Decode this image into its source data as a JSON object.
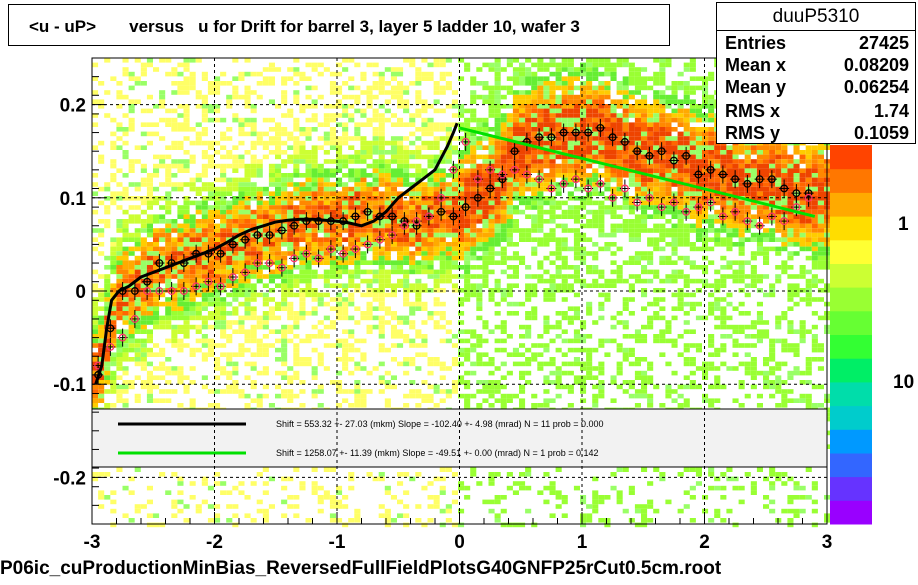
{
  "title": "<u - uP>       versus   u for Drift for barrel 3, layer 5 ladder 10, wafer 3",
  "footer": "P06ic_cuProductionMinBias_ReversedFullFieldPlotsG40GNFP25rCut0.5cm.root",
  "stats": {
    "name": "duuP5310",
    "rows": [
      {
        "key": "Entries",
        "value": "27425"
      },
      {
        "key": "Mean x",
        "value": "0.08209"
      },
      {
        "key": "Mean y",
        "value": "0.06254"
      },
      {
        "key": "RMS x",
        "value": "1.74"
      },
      {
        "key": "RMS y",
        "value": "0.1059"
      }
    ]
  },
  "legend": [
    {
      "color": "#000000",
      "text": "Shift =   553.32 +- 27.03 (mkm) Slope =  -102.40 +- 4.98 (mrad)  N = 11 prob = 0.000"
    },
    {
      "color": "#00e000",
      "text": "Shift =  1258.07 +- 11.39 (mkm) Slope =   -49.51 +- 0.00 (mrad)  N = 1 prob = 0.142"
    }
  ],
  "colors": {
    "black_fit": "#000000",
    "green_fit": "#00e000",
    "mean_markers": "#000000",
    "alt_markers": "#ff3366"
  },
  "chart_data": {
    "type": "heatmap",
    "title": "<u - uP>       versus   u for Drift for barrel 3, layer 5 ladder 10, wafer 3",
    "xlabel": "",
    "ylabel": "",
    "xlim": [
      -3,
      3
    ],
    "ylim": [
      -0.25,
      0.25
    ],
    "x_ticks": [
      -3,
      -2,
      -1,
      0,
      1,
      2,
      3
    ],
    "y_ticks": [
      -0.2,
      -0.1,
      0,
      0.1,
      0.2
    ],
    "x_tick_labels": [
      "-3",
      "-2",
      "-1",
      "0",
      "1",
      "2",
      "3"
    ],
    "y_tick_labels": [
      "-0.2",
      "-0.1",
      "0",
      "0.1",
      "0.2"
    ],
    "z_tick_labels": [
      "1",
      "10"
    ],
    "grid": true,
    "legend_position": "bottom-inside",
    "series": [
      {
        "marker": "open-circle-black",
        "x": [
          -2.95,
          -2.85,
          -2.75,
          -2.65,
          -2.55,
          -2.45,
          -2.35,
          -2.25,
          -2.15,
          -2.05,
          -1.95,
          -1.85,
          -1.75,
          -1.65,
          -1.55,
          -1.45,
          -1.35,
          -1.25,
          -1.15,
          -1.05,
          -0.95,
          -0.85,
          -0.75,
          -0.65,
          -0.55,
          -0.45,
          -0.35,
          -0.25,
          -0.15,
          -0.05,
          0.05,
          0.15,
          0.25,
          0.35,
          0.45,
          0.55,
          0.65,
          0.75,
          0.85,
          0.95,
          1.05,
          1.15,
          1.25,
          1.35,
          1.45,
          1.55,
          1.65,
          1.75,
          1.85,
          1.95,
          2.05,
          2.15,
          2.25,
          2.35,
          2.45,
          2.55,
          2.65,
          2.75,
          2.85
        ],
        "y": [
          -0.09,
          -0.04,
          0.0,
          0.0,
          0.01,
          0.03,
          0.03,
          0.03,
          0.04,
          0.04,
          0.04,
          0.05,
          0.055,
          0.06,
          0.06,
          0.065,
          0.07,
          0.075,
          0.075,
          0.075,
          0.075,
          0.08,
          0.085,
          0.08,
          0.08,
          0.075,
          0.07,
          0.08,
          0.085,
          0.08,
          0.09,
          0.1,
          0.11,
          0.12,
          0.15,
          0.16,
          0.165,
          0.165,
          0.17,
          0.17,
          0.17,
          0.175,
          0.165,
          0.16,
          0.15,
          0.145,
          0.15,
          0.14,
          0.145,
          0.125,
          0.13,
          0.125,
          0.12,
          0.115,
          0.12,
          0.12,
          0.11,
          0.105,
          0.105
        ]
      },
      {
        "marker": "open-circle-pink",
        "x": [
          -2.95,
          -2.85,
          -2.75,
          -2.65,
          -2.55,
          -2.45,
          -2.35,
          -2.25,
          -2.15,
          -2.05,
          -1.95,
          -1.85,
          -1.75,
          -1.65,
          -1.55,
          -1.45,
          -1.35,
          -1.25,
          -1.15,
          -1.05,
          -0.95,
          -0.85,
          -0.75,
          -0.65,
          -0.55,
          -0.45,
          -0.35,
          -0.25,
          -0.15,
          -0.05,
          0.05,
          0.15,
          0.25,
          0.35,
          0.45,
          0.55,
          0.65,
          0.75,
          0.85,
          0.95,
          1.05,
          1.15,
          1.25,
          1.35,
          1.45,
          1.55,
          1.65,
          1.75,
          1.85,
          1.95,
          2.05,
          2.15,
          2.25,
          2.35,
          2.45,
          2.55,
          2.65,
          2.75,
          2.85
        ],
        "y": [
          -0.08,
          -0.06,
          -0.05,
          -0.03,
          0.0,
          0.0,
          0.0,
          0.0,
          0.005,
          0.01,
          0.005,
          0.015,
          0.02,
          0.03,
          0.03,
          0.025,
          0.035,
          0.04,
          0.035,
          0.045,
          0.04,
          0.045,
          0.05,
          0.055,
          0.06,
          0.07,
          0.075,
          0.08,
          0.1,
          0.13,
          0.16,
          0.12,
          0.13,
          0.125,
          0.13,
          0.125,
          0.12,
          0.11,
          0.115,
          0.12,
          0.11,
          0.115,
          0.1,
          0.11,
          0.095,
          0.1,
          0.09,
          0.095,
          0.085,
          0.09,
          0.095,
          0.08,
          0.085,
          0.075,
          0.07,
          0.08,
          0.075,
          0.09,
          0.1
        ]
      }
    ],
    "fits": [
      {
        "name": "fit-black",
        "x": [
          -2.97,
          -2.92,
          -2.88,
          -2.84,
          -2.78,
          -2.7,
          -2.6,
          -2.5,
          -2.4,
          -2.3,
          -2.2,
          -2.1,
          -2.0,
          -1.9,
          -1.8,
          -1.7,
          -1.6,
          -1.5,
          -1.4,
          -1.3,
          -1.2,
          -1.1,
          -1.0,
          -0.9,
          -0.8,
          -0.7,
          -0.6,
          -0.5,
          -0.4,
          -0.3,
          -0.2,
          -0.1,
          -0.05,
          -0.02
        ],
        "y": [
          -0.1,
          -0.08,
          -0.04,
          -0.01,
          0.0,
          0.005,
          0.015,
          0.02,
          0.025,
          0.03,
          0.035,
          0.04,
          0.045,
          0.052,
          0.06,
          0.066,
          0.07,
          0.074,
          0.076,
          0.077,
          0.077,
          0.076,
          0.075,
          0.073,
          0.07,
          0.075,
          0.085,
          0.1,
          0.11,
          0.12,
          0.13,
          0.155,
          0.17,
          0.18
        ]
      },
      {
        "name": "fit-green",
        "x": [
          0.0,
          2.9
        ],
        "y": [
          0.175,
          0.08
        ]
      }
    ]
  }
}
